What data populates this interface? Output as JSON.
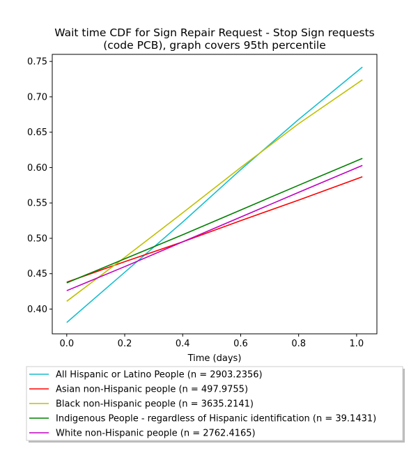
{
  "chart_data": {
    "type": "line",
    "title_lines": [
      "Wait time CDF for Sign Repair Request - Stop Sign  requests",
      "(code PCB), graph covers 95th percentile"
    ],
    "xlabel": "Time (days)",
    "ylabel": "",
    "xlim": [
      -0.05,
      1.07
    ],
    "ylim": [
      0.365,
      0.76
    ],
    "xticks": [
      0.0,
      0.2,
      0.4,
      0.6,
      0.8,
      1.0
    ],
    "xtick_labels": [
      "0.0",
      "0.2",
      "0.4",
      "0.6",
      "0.8",
      "1.0"
    ],
    "yticks": [
      0.4,
      0.45,
      0.5,
      0.55,
      0.6,
      0.65,
      0.7,
      0.75
    ],
    "ytick_labels": [
      "0.40",
      "0.45",
      "0.50",
      "0.55",
      "0.60",
      "0.65",
      "0.70",
      "0.75"
    ],
    "grid": false,
    "legend_position": "below",
    "series": [
      {
        "name": "All Hispanic or Latino People (n = 2903.2356)",
        "color": "#17becf",
        "x": [
          0.0,
          0.2,
          0.4,
          0.6,
          0.8,
          1.02
        ],
        "y": [
          0.381,
          0.452,
          0.523,
          0.597,
          0.668,
          0.742
        ]
      },
      {
        "name": "Asian non-Hispanic people (n = 497.9755)",
        "color": "#ff0000",
        "x": [
          0.0,
          0.2,
          0.4,
          0.6,
          0.8,
          1.02
        ],
        "y": [
          0.438,
          0.467,
          0.495,
          0.525,
          0.554,
          0.587
        ]
      },
      {
        "name": "Black non-Hispanic people (n = 3635.2141)",
        "color": "#bfbf00",
        "x": [
          0.0,
          0.2,
          0.4,
          0.6,
          0.8,
          1.02
        ],
        "y": [
          0.411,
          0.473,
          0.536,
          0.6,
          0.662,
          0.724
        ]
      },
      {
        "name": "Indigenous People - regardless of Hispanic identification (n = 39.1431)",
        "color": "#008000",
        "x": [
          0.0,
          0.2,
          0.4,
          0.6,
          0.8,
          1.02
        ],
        "y": [
          0.437,
          0.471,
          0.505,
          0.54,
          0.575,
          0.613
        ]
      },
      {
        "name": "White non-Hispanic people (n = 2762.4165)",
        "color": "#bf00bf",
        "x": [
          0.0,
          0.2,
          0.4,
          0.6,
          0.8,
          1.02
        ],
        "y": [
          0.426,
          0.46,
          0.495,
          0.53,
          0.565,
          0.603
        ]
      }
    ]
  }
}
